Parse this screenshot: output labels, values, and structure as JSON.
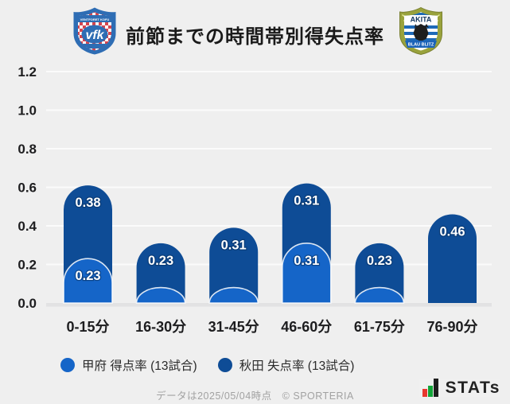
{
  "header": {
    "title": "前節までの時間帯別得失点率"
  },
  "logos": {
    "kofu": {
      "name": "VENTFORET KOFU",
      "initials": "vfk"
    },
    "akita": {
      "name": "AKITA",
      "banner": "BLAU BLITZ"
    }
  },
  "chart_data": {
    "type": "bar",
    "stacked": true,
    "title": "前節までの時間帯別得失点率",
    "categories": [
      "0-15分",
      "16-30分",
      "31-45分",
      "46-60分",
      "61-75分",
      "76-90分"
    ],
    "series": [
      {
        "name": "甲府 得点率 (13試合)",
        "color": "#1565c8",
        "values": [
          0.23,
          0.08,
          0.08,
          0.31,
          0.08,
          0
        ],
        "labels": [
          "0.23",
          "",
          "",
          "0.31",
          "",
          ""
        ]
      },
      {
        "name": "秋田 失点率 (13試合)",
        "color": "#0e4c96",
        "values": [
          0.38,
          0.23,
          0.31,
          0.31,
          0.23,
          0.46
        ],
        "labels": [
          "0.38",
          "0.23",
          "0.31",
          "0.31",
          "0.23",
          "0.46"
        ]
      }
    ],
    "xlabel": "",
    "ylabel": "",
    "ylim": [
      0,
      1.2
    ],
    "yticks": [
      "0.0",
      "0.2",
      "0.4",
      "0.6",
      "0.8",
      "1.0",
      "1.2"
    ],
    "grid": true,
    "legend_position": "bottom"
  },
  "footer": {
    "note": "データは2025/05/04時点　© SPORTERIA",
    "stats_logo_text": "STATs",
    "stats_colors": {
      "red": "#e8382f",
      "green": "#13a538",
      "black": "#1e1e1e"
    }
  }
}
